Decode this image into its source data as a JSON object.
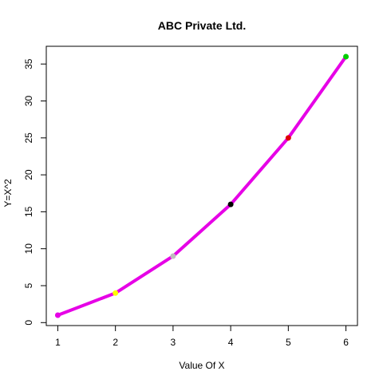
{
  "chart_data": {
    "type": "line",
    "title": "ABC Private Ltd.",
    "xlabel": "Value Of X",
    "ylabel": "Y=X^2",
    "x": [
      1,
      2,
      3,
      4,
      5,
      6
    ],
    "series": [
      {
        "values": [
          1,
          4,
          9,
          16,
          25,
          36
        ],
        "line_color": "#E600E6",
        "point_colors": [
          "#E600E6",
          "#FFFF00",
          "#BEBEBE",
          "#000000",
          "#DF0000",
          "#00CD00"
        ]
      }
    ],
    "xlim": [
      0.8,
      6.2
    ],
    "ylim": [
      -0.4,
      37.4
    ],
    "xticks": [
      1,
      2,
      3,
      4,
      5,
      6
    ],
    "yticks": [
      0,
      5,
      10,
      15,
      20,
      25,
      30,
      35
    ],
    "grid": false,
    "legend": "none"
  }
}
